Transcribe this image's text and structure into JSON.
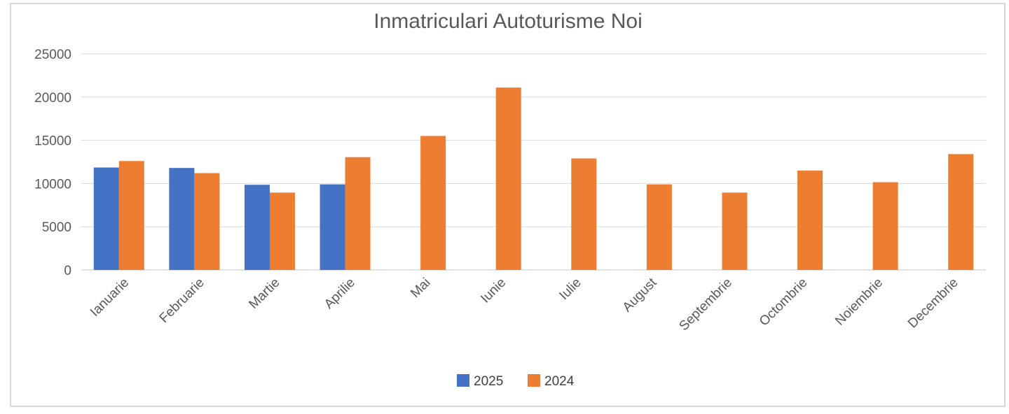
{
  "chart_data": {
    "type": "bar",
    "title": "Inmatriculari Autoturisme Noi",
    "categories": [
      "Ianuarie",
      "Februarie",
      "Martie",
      "Aprilie",
      "Mai",
      "Iunie",
      "Iulie",
      "August",
      "Septembrie",
      "Octombrie",
      "Noiembrie",
      "Decembrie"
    ],
    "series": [
      {
        "name": "2025",
        "color": "#4472C4",
        "values": [
          11850,
          11800,
          9850,
          9900,
          null,
          null,
          null,
          null,
          null,
          null,
          null,
          null
        ]
      },
      {
        "name": "2024",
        "color": "#ED7D31",
        "values": [
          12600,
          11200,
          8950,
          13050,
          15500,
          21100,
          12900,
          9900,
          8950,
          11500,
          10150,
          13400
        ]
      }
    ],
    "ylim": [
      0,
      25000
    ],
    "yticks": [
      "0",
      "5000",
      "10000",
      "15000",
      "20000",
      "25000"
    ],
    "grid": true,
    "legend": "bottom"
  }
}
